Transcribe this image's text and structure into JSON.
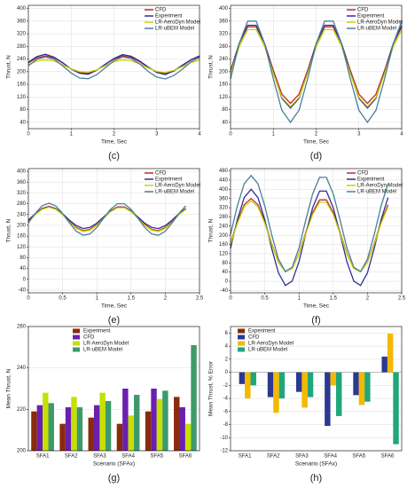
{
  "chart_data": [
    {
      "type": "line",
      "label": "(c)",
      "xlabel": "Time, Sec",
      "ylabel": "Thrust, N",
      "legend": "upper right",
      "grid": true,
      "x": [
        0,
        0.2,
        0.4,
        0.6,
        0.8,
        1,
        1.2,
        1.4,
        1.6,
        1.8,
        2,
        2.2,
        2.4,
        2.6,
        2.8,
        3,
        3.2,
        3.4,
        3.6,
        3.8,
        4
      ],
      "xlim": [
        0,
        4
      ],
      "xticks": [
        0,
        1,
        2,
        3,
        4
      ],
      "ylim": [
        20,
        410
      ],
      "yticks": [
        40,
        80,
        120,
        160,
        200,
        240,
        280,
        320,
        360,
        400
      ],
      "series": [
        {
          "name": "CFD",
          "color": "#c0282d",
          "values": [
            228,
            244,
            250,
            244,
            228,
            209,
            197,
            195,
            205,
            223,
            240,
            250,
            246,
            232,
            214,
            199,
            194,
            202,
            219,
            237,
            248
          ]
        },
        {
          "name": "Experiment",
          "color": "#2e3192",
          "values": [
            230,
            248,
            255,
            246,
            229,
            208,
            195,
            192,
            205,
            224,
            242,
            254,
            249,
            234,
            215,
            198,
            191,
            203,
            221,
            238,
            250
          ]
        },
        {
          "name": "LR-AeroDyn Model",
          "color": "#c8d400",
          "values": [
            222,
            234,
            238,
            234,
            222,
            209,
            200,
            199,
            206,
            219,
            231,
            238,
            235,
            225,
            212,
            201,
            198,
            204,
            216,
            229,
            237
          ]
        },
        {
          "name": "LR-uBEM Model",
          "color": "#4a7f99",
          "values": [
            219,
            239,
            247,
            239,
            219,
            196,
            180,
            178,
            191,
            213,
            235,
            247,
            242,
            225,
            201,
            183,
            177,
            188,
            208,
            231,
            245
          ]
        }
      ]
    },
    {
      "type": "line",
      "label": "(d)",
      "xlabel": "Time, Sec",
      "ylabel": "Thrust, N",
      "legend": "upper right",
      "grid": true,
      "x": [
        0,
        0.2,
        0.4,
        0.6,
        0.8,
        1,
        1.2,
        1.4,
        1.6,
        1.8,
        2,
        2.2,
        2.4,
        2.6,
        2.8,
        3,
        3.2,
        3.4,
        3.6,
        3.8,
        4
      ],
      "xlim": [
        0,
        4
      ],
      "xticks": [
        0,
        1,
        2,
        3,
        4
      ],
      "ylim": [
        20,
        410
      ],
      "yticks": [
        40,
        80,
        120,
        160,
        200,
        240,
        280,
        320,
        360,
        400
      ],
      "series": [
        {
          "name": "CFD",
          "color": "#c0282d",
          "values": [
            204,
            288,
            342,
            342,
            288,
            204,
            129,
            100,
            129,
            204,
            288,
            342,
            342,
            288,
            204,
            129,
            100,
            129,
            204,
            288,
            342
          ]
        },
        {
          "name": "Experiment",
          "color": "#2e3192",
          "values": [
            197,
            288,
            347,
            347,
            288,
            197,
            116,
            85,
            116,
            197,
            288,
            347,
            347,
            288,
            197,
            116,
            85,
            116,
            197,
            288,
            347
          ]
        },
        {
          "name": "LR-AeroDyn Model",
          "color": "#c8d400",
          "values": [
            194,
            278,
            333,
            333,
            278,
            194,
            119,
            90,
            119,
            194,
            278,
            333,
            333,
            278,
            194,
            119,
            90,
            119,
            194,
            278,
            333
          ]
        },
        {
          "name": "LR-uBEM Model",
          "color": "#4a7f99",
          "values": [
            177,
            288,
            360,
            360,
            288,
            177,
            78,
            40,
            78,
            177,
            288,
            360,
            360,
            288,
            177,
            78,
            40,
            78,
            177,
            288,
            360
          ]
        }
      ]
    },
    {
      "type": "line",
      "label": "(e)",
      "xlabel": "Time, Sec",
      "ylabel": "Thrust, N",
      "legend": "upper right",
      "grid": true,
      "x": [
        0,
        0.1,
        0.2,
        0.3,
        0.4,
        0.5,
        0.6,
        0.7,
        0.8,
        0.9,
        1,
        1.1,
        1.2,
        1.3,
        1.4,
        1.5,
        1.6,
        1.7,
        1.8,
        1.9,
        2,
        2.1,
        2.2,
        2.3
      ],
      "xlim": [
        0,
        2.5
      ],
      "xticks": [
        0,
        0.5,
        1,
        1.5,
        2,
        2.5
      ],
      "ylim": [
        -50,
        410
      ],
      "yticks": [
        -40,
        0,
        40,
        80,
        120,
        160,
        200,
        240,
        280,
        320,
        360,
        400
      ],
      "series": [
        {
          "name": "CFD",
          "color": "#c0282d",
          "values": [
            215,
            242,
            262,
            270,
            262,
            242,
            215,
            192,
            180,
            185,
            203,
            229,
            253,
            268,
            268,
            253,
            229,
            203,
            185,
            180,
            192,
            215,
            242,
            262
          ]
        },
        {
          "name": "Experiment",
          "color": "#2e3192",
          "values": [
            219,
            243,
            261,
            268,
            261,
            243,
            219,
            199,
            188,
            192,
            208,
            231,
            253,
            266,
            266,
            253,
            231,
            208,
            192,
            188,
            199,
            219,
            243,
            261
          ]
        },
        {
          "name": "LR-AeroDyn Model",
          "color": "#c8d400",
          "values": [
            212,
            239,
            259,
            267,
            259,
            239,
            212,
            189,
            177,
            182,
            200,
            226,
            250,
            265,
            265,
            250,
            226,
            200,
            182,
            177,
            189,
            212,
            239,
            259
          ]
        },
        {
          "name": "LR-uBEM Model",
          "color": "#4a7f99",
          "values": [
            209,
            244,
            272,
            282,
            272,
            244,
            209,
            178,
            163,
            168,
            192,
            227,
            259,
            280,
            280,
            259,
            227,
            192,
            168,
            163,
            178,
            209,
            244,
            272
          ]
        }
      ]
    },
    {
      "type": "line",
      "label": "(f)",
      "xlabel": "Time, Sec",
      "ylabel": "Thrust, N",
      "legend": "upper right",
      "grid": true,
      "x": [
        0,
        0.1,
        0.2,
        0.3,
        0.4,
        0.5,
        0.6,
        0.7,
        0.8,
        0.9,
        1,
        1.1,
        1.2,
        1.3,
        1.4,
        1.5,
        1.6,
        1.7,
        1.8,
        1.9,
        2,
        2.1,
        2.2,
        2.3
      ],
      "xlim": [
        0,
        2.5
      ],
      "xticks": [
        0,
        0.5,
        1,
        1.5,
        2,
        2.5
      ],
      "ylim": [
        -50,
        490
      ],
      "yticks": [
        -40,
        0,
        40,
        80,
        120,
        160,
        200,
        240,
        280,
        320,
        360,
        400,
        440,
        480
      ],
      "series": [
        {
          "name": "CFD",
          "color": "#c0282d",
          "values": [
            165,
            259,
            333,
            360,
            333,
            259,
            165,
            83,
            42,
            56,
            120,
            213,
            299,
            354,
            354,
            299,
            213,
            120,
            56,
            42,
            83,
            165,
            259,
            333
          ]
        },
        {
          "name": "Experiment",
          "color": "#2e3192",
          "values": [
            144,
            268,
            364,
            400,
            364,
            268,
            144,
            37,
            -18,
            1,
            85,
            207,
            320,
            392,
            392,
            320,
            207,
            85,
            1,
            -18,
            37,
            144,
            268,
            364
          ]
        },
        {
          "name": "LR-AeroDyn Model",
          "color": "#c8d400",
          "values": [
            161,
            252,
            324,
            350,
            324,
            252,
            161,
            82,
            42,
            55,
            118,
            207,
            291,
            344,
            344,
            291,
            207,
            118,
            55,
            42,
            82,
            161,
            252,
            324
          ]
        },
        {
          "name": "LR-uBEM Model",
          "color": "#4a7f99",
          "values": [
            204,
            328,
            424,
            460,
            424,
            328,
            204,
            97,
            42,
            61,
            145,
            267,
            380,
            452,
            452,
            380,
            267,
            145,
            61,
            42,
            97,
            204,
            328,
            424
          ]
        }
      ]
    },
    {
      "type": "bar",
      "label": "(g)",
      "xlabel": "Scenario (SFAx)",
      "ylabel": "Mean Thrust, N",
      "legend": "upper left",
      "grid": true,
      "categories": [
        "SFA1",
        "SFA2",
        "SFA3",
        "SFA4",
        "SFA5",
        "SFA6"
      ],
      "ylim": [
        200,
        260
      ],
      "yticks": [
        200,
        220,
        240,
        260
      ],
      "series": [
        {
          "name": "Experiment",
          "color": "#8b2a0a",
          "values": [
            219,
            213,
            216,
            213,
            219,
            226
          ]
        },
        {
          "name": "CFD",
          "color": "#6a1fb0",
          "values": [
            222,
            221,
            222,
            230,
            230,
            221
          ]
        },
        {
          "name": "LR-AeroDyn Model",
          "color": "#c6e000",
          "values": [
            228,
            226,
            228,
            217,
            225,
            213
          ]
        },
        {
          "name": "LR-uBEM Model",
          "color": "#3e9a6c",
          "values": [
            223,
            221,
            224,
            227,
            229,
            251
          ]
        }
      ]
    },
    {
      "type": "bar",
      "label": "(h)",
      "xlabel": "Scenario (SFAx)",
      "ylabel": "Mean Thrust, % Error",
      "legend": "upper left",
      "grid": true,
      "categories": [
        "SFA1",
        "SFA2",
        "SFA3",
        "SFA4",
        "SFA5",
        "SFA6"
      ],
      "ylim": [
        -12,
        7
      ],
      "yticks": [
        -12,
        -10,
        -8,
        -6,
        -4,
        -2,
        0,
        2,
        4,
        6
      ],
      "series": [
        {
          "name": "Experiment",
          "color": "#8b2a0a",
          "values": [
            0,
            0,
            0,
            0,
            0,
            0
          ]
        },
        {
          "name": "CFD",
          "color": "#2b3990",
          "values": [
            -1.8,
            -3.8,
            -3,
            -8.2,
            -3.5,
            2.4
          ]
        },
        {
          "name": "LR-AeroDyn Model",
          "color": "#f5b800",
          "values": [
            -4,
            -6.2,
            -5.4,
            -2,
            -5,
            5.9
          ]
        },
        {
          "name": "LR-uBEM Model",
          "color": "#21a67a",
          "values": [
            -2,
            -4,
            -3.8,
            -6.7,
            -4.5,
            -11
          ]
        }
      ]
    }
  ]
}
